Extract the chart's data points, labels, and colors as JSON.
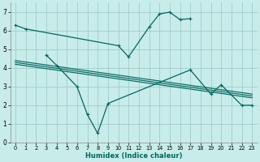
{
  "xlabel": "Humidex (Indice chaleur)",
  "background_color": "#c8ecea",
  "grid_color": "#a0ccca",
  "line_color": "#006860",
  "xlim": [
    -0.5,
    23.5
  ],
  "ylim": [
    0,
    7.5
  ],
  "xticks": [
    0,
    1,
    2,
    3,
    4,
    5,
    6,
    7,
    8,
    9,
    10,
    11,
    12,
    13,
    14,
    15,
    16,
    17,
    18,
    19,
    20,
    21,
    22,
    23
  ],
  "yticks": [
    0,
    1,
    2,
    3,
    4,
    5,
    6,
    7
  ],
  "curve1_x": [
    0,
    1,
    10,
    11,
    13,
    14,
    15,
    16,
    17
  ],
  "curve1_y": [
    6.3,
    6.1,
    5.2,
    4.6,
    6.2,
    6.9,
    7.0,
    6.6,
    6.65
  ],
  "curve2_x": [
    3,
    4,
    6,
    7,
    8,
    9,
    17,
    19,
    20,
    22,
    23
  ],
  "curve2_y": [
    4.7,
    4.15,
    3.0,
    1.5,
    0.5,
    2.1,
    3.9,
    2.6,
    3.1,
    2.0,
    2.0
  ],
  "trend1_x": [
    0,
    23
  ],
  "trend1_y": [
    4.4,
    2.6
  ],
  "trend2_x": [
    0,
    23
  ],
  "trend2_y": [
    4.3,
    2.5
  ],
  "trend3_x": [
    0,
    23
  ],
  "trend3_y": [
    4.2,
    2.4
  ]
}
